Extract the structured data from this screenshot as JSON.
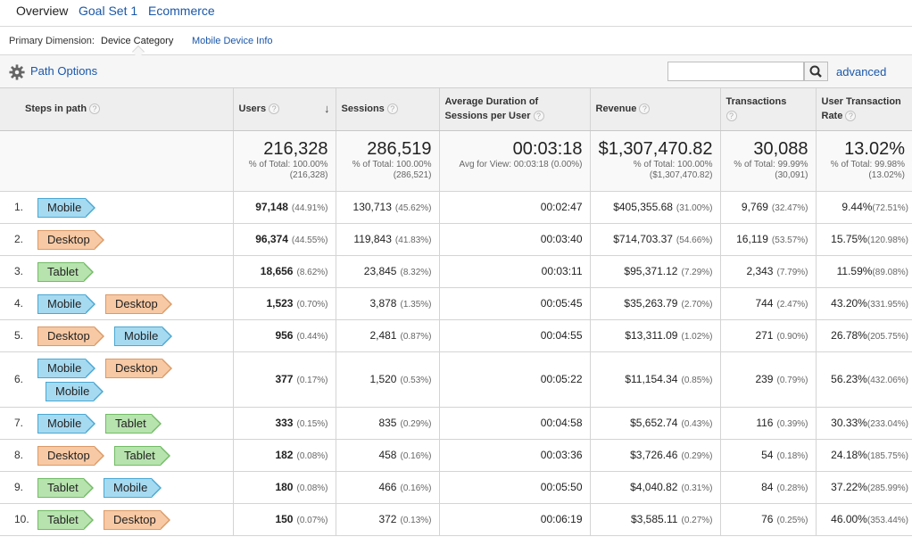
{
  "tabs": [
    "Overview",
    "Goal Set 1",
    "Ecommerce"
  ],
  "dimension": {
    "label": "Primary Dimension:",
    "active": "Device Category",
    "link": "Mobile Device Info"
  },
  "toolbar": {
    "path_options": "Path Options",
    "search_placeholder": "",
    "advanced": "advanced"
  },
  "columns": {
    "steps": "Steps in path",
    "users": "Users",
    "sessions": "Sessions",
    "avg_duration": "Average Duration of Sessions per User",
    "revenue": "Revenue",
    "transactions": "Transactions",
    "rate": "User Transaction Rate"
  },
  "totals": {
    "users": "216,328",
    "users_sub": "% of Total: 100.00% (216,328)",
    "sessions": "286,519",
    "sessions_sub": "% of Total: 100.00% (286,521)",
    "avg_duration": "00:03:18",
    "avg_duration_sub": "Avg for View: 00:03:18 (0.00%)",
    "revenue": "$1,307,470.82",
    "revenue_sub": "% of Total: 100.00% ($1,307,470.82)",
    "transactions": "30,088",
    "transactions_sub": "% of Total: 99.99% (30,091)",
    "rate": "13.02%",
    "rate_sub": "% of Total: 99.98% (13.02%)"
  },
  "rows": [
    {
      "num": "1.",
      "steps": [
        "Mobile"
      ],
      "users": "97,148",
      "users_pct": "(44.91%)",
      "sessions": "130,713",
      "sessions_pct": "(45.62%)",
      "duration": "00:02:47",
      "revenue": "$405,355.68",
      "revenue_pct": "(31.00%)",
      "transactions": "9,769",
      "transactions_pct": "(32.47%)",
      "rate": "9.44%",
      "rate_pct": "(72.51%)"
    },
    {
      "num": "2.",
      "steps": [
        "Desktop"
      ],
      "users": "96,374",
      "users_pct": "(44.55%)",
      "sessions": "119,843",
      "sessions_pct": "(41.83%)",
      "duration": "00:03:40",
      "revenue": "$714,703.37",
      "revenue_pct": "(54.66%)",
      "transactions": "16,119",
      "transactions_pct": "(53.57%)",
      "rate": "15.75%",
      "rate_pct": "(120.98%)"
    },
    {
      "num": "3.",
      "steps": [
        "Tablet"
      ],
      "users": "18,656",
      "users_pct": "(8.62%)",
      "sessions": "23,845",
      "sessions_pct": "(8.32%)",
      "duration": "00:03:11",
      "revenue": "$95,371.12",
      "revenue_pct": "(7.29%)",
      "transactions": "2,343",
      "transactions_pct": "(7.79%)",
      "rate": "11.59%",
      "rate_pct": "(89.08%)"
    },
    {
      "num": "4.",
      "steps": [
        "Mobile",
        "Desktop"
      ],
      "users": "1,523",
      "users_pct": "(0.70%)",
      "sessions": "3,878",
      "sessions_pct": "(1.35%)",
      "duration": "00:05:45",
      "revenue": "$35,263.79",
      "revenue_pct": "(2.70%)",
      "transactions": "744",
      "transactions_pct": "(2.47%)",
      "rate": "43.20%",
      "rate_pct": "(331.95%)"
    },
    {
      "num": "5.",
      "steps": [
        "Desktop",
        "Mobile"
      ],
      "users": "956",
      "users_pct": "(0.44%)",
      "sessions": "2,481",
      "sessions_pct": "(0.87%)",
      "duration": "00:04:55",
      "revenue": "$13,311.09",
      "revenue_pct": "(1.02%)",
      "transactions": "271",
      "transactions_pct": "(0.90%)",
      "rate": "26.78%",
      "rate_pct": "(205.75%)"
    },
    {
      "num": "6.",
      "steps": [
        "Mobile",
        "Desktop",
        "Mobile"
      ],
      "users": "377",
      "users_pct": "(0.17%)",
      "sessions": "1,520",
      "sessions_pct": "(0.53%)",
      "duration": "00:05:22",
      "revenue": "$11,154.34",
      "revenue_pct": "(0.85%)",
      "transactions": "239",
      "transactions_pct": "(0.79%)",
      "rate": "56.23%",
      "rate_pct": "(432.06%)"
    },
    {
      "num": "7.",
      "steps": [
        "Mobile",
        "Tablet"
      ],
      "users": "333",
      "users_pct": "(0.15%)",
      "sessions": "835",
      "sessions_pct": "(0.29%)",
      "duration": "00:04:58",
      "revenue": "$5,652.74",
      "revenue_pct": "(0.43%)",
      "transactions": "116",
      "transactions_pct": "(0.39%)",
      "rate": "30.33%",
      "rate_pct": "(233.04%)"
    },
    {
      "num": "8.",
      "steps": [
        "Desktop",
        "Tablet"
      ],
      "users": "182",
      "users_pct": "(0.08%)",
      "sessions": "458",
      "sessions_pct": "(0.16%)",
      "duration": "00:03:36",
      "revenue": "$3,726.46",
      "revenue_pct": "(0.29%)",
      "transactions": "54",
      "transactions_pct": "(0.18%)",
      "rate": "24.18%",
      "rate_pct": "(185.75%)"
    },
    {
      "num": "9.",
      "steps": [
        "Tablet",
        "Mobile"
      ],
      "users": "180",
      "users_pct": "(0.08%)",
      "sessions": "466",
      "sessions_pct": "(0.16%)",
      "duration": "00:05:50",
      "revenue": "$4,040.82",
      "revenue_pct": "(0.31%)",
      "transactions": "84",
      "transactions_pct": "(0.28%)",
      "rate": "37.22%",
      "rate_pct": "(285.99%)"
    },
    {
      "num": "10.",
      "steps": [
        "Tablet",
        "Desktop"
      ],
      "users": "150",
      "users_pct": "(0.07%)",
      "sessions": "372",
      "sessions_pct": "(0.13%)",
      "duration": "00:06:19",
      "revenue": "$3,585.11",
      "revenue_pct": "(0.27%)",
      "transactions": "76",
      "transactions_pct": "(0.25%)",
      "rate": "46.00%",
      "rate_pct": "(353.44%)"
    }
  ]
}
